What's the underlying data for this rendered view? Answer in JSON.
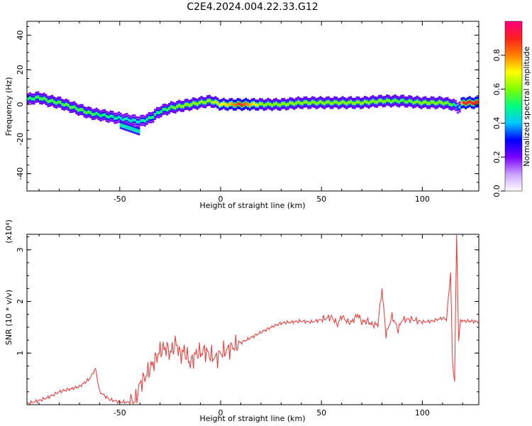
{
  "chart_data": [
    {
      "type": "heatmap",
      "title": "C2E4.2024.004.22.33.G12",
      "xlabel": "Height of straight line (km)",
      "ylabel": "Frequency (Hz)",
      "xlim": [
        -96,
        128
      ],
      "ylim": [
        -50,
        48
      ],
      "x_ticks": [
        -50,
        0,
        50,
        100
      ],
      "y_ticks": [
        -40,
        -20,
        0,
        20,
        40
      ],
      "colorbar": {
        "label": "Normalized spectral amplitude",
        "range": [
          0,
          1
        ],
        "ticks": [
          0.0,
          0.2,
          0.4,
          0.6,
          0.8
        ],
        "colormap": [
          "#ffffff",
          "#c8a0ff",
          "#7a00ff",
          "#0000ff",
          "#00c8ff",
          "#00ff80",
          "#7fff00",
          "#ffff00",
          "#ff8000",
          "#ff2020",
          "#ff0080"
        ]
      },
      "ridge": {
        "x": [
          -96,
          -90,
          -85,
          -80,
          -75,
          -70,
          -65,
          -60,
          -55,
          -50,
          -45,
          -40,
          -35,
          -30,
          -25,
          -20,
          -15,
          -10,
          -5,
          0,
          5,
          10,
          20,
          30,
          40,
          50,
          60,
          70,
          80,
          90,
          100,
          110,
          115,
          118,
          120,
          128
        ],
        "y": [
          3,
          4,
          2,
          1,
          -1,
          -3,
          -5,
          -6,
          -7,
          -8,
          -9,
          -10,
          -8,
          -4,
          -2,
          -1,
          0,
          1,
          2,
          0,
          0,
          0,
          0,
          0,
          1,
          1,
          1,
          1,
          2,
          2,
          1,
          1,
          0,
          -2,
          1,
          1
        ],
        "amplitude": [
          0.5,
          0.55,
          0.55,
          0.55,
          0.55,
          0.55,
          0.55,
          0.5,
          0.5,
          0.45,
          0.45,
          0.45,
          0.5,
          0.5,
          0.55,
          0.6,
          0.6,
          0.6,
          0.6,
          0.7,
          0.75,
          0.9,
          0.6,
          0.6,
          0.6,
          0.6,
          0.6,
          0.6,
          0.6,
          0.55,
          0.6,
          0.6,
          0.55,
          0.3,
          0.9,
          0.9
        ]
      },
      "secondary_branch": {
        "x": [
          -50,
          -45,
          -40
        ],
        "y": [
          -12,
          -14,
          -16
        ]
      }
    },
    {
      "type": "line",
      "xlabel": "Height of straight line (km)",
      "ylabel": "SNR (10 * v/v)",
      "y_scale_note": "(x10⁴)",
      "xlim": [
        -96,
        128
      ],
      "ylim": [
        0,
        3.3
      ],
      "x_ticks": [
        -50,
        0,
        50,
        100
      ],
      "y_ticks": [
        1,
        2,
        3
      ],
      "series": [
        {
          "color": "#ee3333",
          "x": [
            -96,
            -90,
            -85,
            -80,
            -75,
            -70,
            -65,
            -62,
            -60,
            -55,
            -50,
            -45,
            -42,
            -40,
            -38,
            -35,
            -32,
            -30,
            -27,
            -25,
            -22,
            -20,
            -18,
            -15,
            -12,
            -10,
            -8,
            -5,
            -2,
            0,
            3,
            5,
            8,
            10,
            15,
            20,
            25,
            30,
            35,
            40,
            45,
            50,
            53,
            55,
            58,
            60,
            63,
            65,
            68,
            70,
            73,
            75,
            78,
            80,
            82,
            85,
            88,
            90,
            95,
            100,
            105,
            110,
            112,
            114,
            115,
            116,
            117,
            118,
            119,
            120,
            125,
            128
          ],
          "y": [
            0.02,
            0.08,
            0.15,
            0.25,
            0.3,
            0.35,
            0.5,
            0.7,
            0.25,
            0.1,
            0.05,
            0.05,
            0.1,
            0.4,
            0.5,
            0.7,
            0.9,
            1.05,
            1.1,
            1.0,
            1.2,
            0.95,
            1.05,
            0.8,
            1.0,
            1.0,
            1.05,
            0.95,
            0.9,
            1.0,
            1.05,
            1.1,
            1.15,
            1.2,
            1.3,
            1.4,
            1.5,
            1.58,
            1.6,
            1.62,
            1.6,
            1.65,
            1.68,
            1.7,
            1.55,
            1.72,
            1.6,
            1.6,
            1.75,
            1.6,
            1.62,
            1.55,
            1.55,
            2.25,
            1.35,
            1.72,
            1.45,
            1.65,
            1.65,
            1.6,
            1.62,
            1.68,
            1.65,
            2.55,
            0.8,
            0.45,
            3.3,
            1.25,
            1.65,
            1.62,
            1.62,
            1.6
          ]
        }
      ]
    }
  ]
}
